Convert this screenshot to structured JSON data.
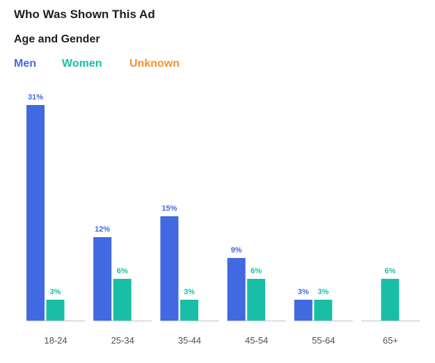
{
  "chart_data": {
    "type": "bar",
    "title": "Who Was Shown This Ad",
    "subtitle": "Age and Gender",
    "categories": [
      "18-24",
      "25-34",
      "35-44",
      "45-54",
      "55-64",
      "65+"
    ],
    "series": [
      {
        "name": "Men",
        "color": "#4169e1",
        "values": [
          31,
          12,
          15,
          9,
          3,
          0
        ],
        "labels": [
          "31%",
          "12%",
          "15%",
          "9%",
          "3%",
          ""
        ]
      },
      {
        "name": "Women",
        "color": "#18bfa6",
        "values": [
          3,
          6,
          3,
          6,
          3,
          6
        ],
        "labels": [
          "3%",
          "6%",
          "3%",
          "6%",
          "3%",
          "6%"
        ]
      },
      {
        "name": "Unknown",
        "color": "#f5902e",
        "values": [
          0,
          0,
          0,
          0,
          0,
          0
        ],
        "labels": [
          "",
          "",
          "",
          "",
          "",
          ""
        ]
      }
    ],
    "ylim": [
      0,
      31
    ],
    "xlabel": "",
    "ylabel": "",
    "grid": false,
    "legend_position": "top-left"
  }
}
